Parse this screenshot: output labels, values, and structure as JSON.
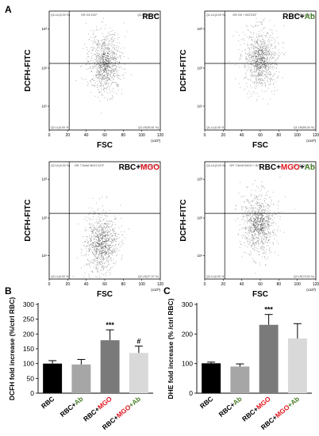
{
  "figure": {
    "panel_letters": {
      "a": "A",
      "b": "B",
      "c": "C"
    },
    "colors": {
      "bar_black": "#000000",
      "bar_light_gray": "#a6a6a6",
      "bar_dark_gray": "#7a7a7a",
      "bar_lightest_gray": "#d9d9d9",
      "mgo_red": "#e0141e",
      "ab_green": "#4a7f2a",
      "dot_color": "#5a5a5a"
    }
  },
  "scatter_plots": [
    {
      "title_parts": [
        {
          "text": "RBC",
          "color": "#000000"
        }
      ],
      "subtitle": "GR G0 DCF",
      "ylabel": "DCFH-FITC",
      "xlabel": "FSC",
      "x_unit": "(x10³)",
      "xticks": [
        "0",
        "20",
        "40",
        "60",
        "80",
        "100",
        "120"
      ],
      "yticks": [
        "10¹",
        "10²",
        "10³"
      ],
      "quadrants": {
        "ul": "Q2-UL(0,00 %)",
        "ur": "Q2-UR(19,19 %)",
        "ll": "Q2-LL(0,00 %)",
        "lr": "Q2-LR(80,81 %)"
      },
      "cloud": {
        "cx": 60,
        "cy": 0.43
      }
    },
    {
      "title_parts": [
        {
          "text": "RBC+",
          "color": "#000000"
        },
        {
          "text": "Ab",
          "color": "#4a7f2a"
        }
      ],
      "subtitle": "GR G0 + BO DCF",
      "ylabel": "DCFH-FITC",
      "xlabel": "FSC",
      "x_unit": "(x10³)",
      "xticks": [
        "0",
        "20",
        "40",
        "60",
        "80",
        "100",
        "120"
      ],
      "yticks": [
        "10¹",
        "10²",
        "10³"
      ],
      "quadrants": {
        "ul": "Q1-UL(0,00 %)",
        "ur": "Q1-UR(10,66 %)",
        "ll": "Q1-LL(0,00 %)",
        "lr": "Q1-LR(89,34 %)"
      },
      "cloud": {
        "cx": 60,
        "cy": 0.4
      }
    },
    {
      "title_parts": [
        {
          "text": "RBC+",
          "color": "#000000"
        },
        {
          "text": "MGO",
          "color": "#e0141e"
        }
      ],
      "subtitle": "GR 7.5mM MGO DCF",
      "ylabel": "DCFH-FITC",
      "xlabel": "FSC",
      "x_unit": "(x10³)",
      "xticks": [
        "0",
        "20",
        "40",
        "60",
        "80",
        "100",
        "120"
      ],
      "yticks": [
        "10¹",
        "10²",
        "10³"
      ],
      "quadrants": {
        "ul": "Q2-UL(0,00 %)",
        "ur": "Q2-UR(72,63 %)",
        "ll": "Q2-LL(0,00 %)",
        "lr": "Q2-LR(27,37 %)"
      },
      "cloud": {
        "cx": 56,
        "cy": 0.7
      }
    },
    {
      "title_parts": [
        {
          "text": "RBC+",
          "color": "#000000"
        },
        {
          "text": "MGO",
          "color": "#e0141e"
        },
        {
          "text": "+",
          "color": "#000000"
        },
        {
          "text": "Ab",
          "color": "#4a7f2a"
        }
      ],
      "subtitle": "GR 7.5mM MGO + BO",
      "ylabel": "DCFH-FITC",
      "xlabel": "FSC",
      "x_unit": "(x10³)",
      "xticks": [
        "0",
        "20",
        "40",
        "60",
        "80",
        "100",
        "120"
      ],
      "yticks": [
        "10¹",
        "10²",
        "10³"
      ],
      "quadrants": {
        "ul": "Q2-UL(0,00 %)",
        "ur": "Q2-UR(20,97 %)",
        "ll": "Q2-LL(0,00 %)",
        "lr": "Q2-LR(79,03 %)"
      },
      "cloud": {
        "cx": 58,
        "cy": 0.52
      }
    }
  ],
  "chart_data": [
    {
      "type": "bar",
      "panel": "B",
      "ylabel": "DCFH fold increase (%/ctrl RBC)",
      "ylim": [
        0,
        300
      ],
      "yticks": [
        0,
        50,
        100,
        150,
        200,
        250,
        300
      ],
      "categories": [
        [
          {
            "text": "RBC",
            "color": "#000000"
          }
        ],
        [
          {
            "text": "RBC+",
            "color": "#000000"
          },
          {
            "text": "Ab",
            "color": "#4a7f2a"
          }
        ],
        [
          {
            "text": "RBC+",
            "color": "#000000"
          },
          {
            "text": "MGO",
            "color": "#e0141e"
          }
        ],
        [
          {
            "text": "RBC+",
            "color": "#000000"
          },
          {
            "text": "MGO",
            "color": "#e0141e"
          },
          {
            "text": "+Ab",
            "color": "#4a7f2a"
          }
        ]
      ],
      "values": [
        100,
        97,
        179,
        136
      ],
      "errors": [
        10,
        17,
        35,
        23
      ],
      "annotations": [
        "",
        "",
        "***",
        "#"
      ],
      "bar_colors": [
        "#000000",
        "#a6a6a6",
        "#7a7a7a",
        "#d9d9d9"
      ]
    },
    {
      "type": "bar",
      "panel": "C",
      "ylabel": "DHE fold increase (% /ctrl RBC)",
      "ylim": [
        0,
        300
      ],
      "yticks": [
        0,
        100,
        200,
        300
      ],
      "categories": [
        [
          {
            "text": "RBC",
            "color": "#000000"
          }
        ],
        [
          {
            "text": "RBC+",
            "color": "#000000"
          },
          {
            "text": "Ab",
            "color": "#4a7f2a"
          }
        ],
        [
          {
            "text": "RBC+",
            "color": "#000000"
          },
          {
            "text": "MGO",
            "color": "#e0141e"
          }
        ],
        [
          {
            "text": "RBC+",
            "color": "#000000"
          },
          {
            "text": "MGO",
            "color": "#e0141e"
          },
          {
            "text": "+Ab",
            "color": "#4a7f2a"
          }
        ]
      ],
      "values": [
        101,
        90,
        231,
        185
      ],
      "errors": [
        4,
        9,
        35,
        50
      ],
      "annotations": [
        "",
        "",
        "***",
        ""
      ],
      "bar_colors": [
        "#000000",
        "#a6a6a6",
        "#7a7a7a",
        "#d9d9d9"
      ]
    }
  ]
}
